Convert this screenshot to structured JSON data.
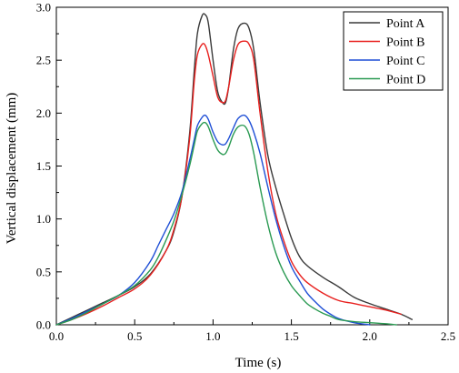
{
  "chart_data": {
    "type": "line",
    "title": "",
    "xlabel": "Time (s)",
    "ylabel": "Vertical displacement (mm)",
    "xlim": [
      0.0,
      2.5
    ],
    "ylim": [
      0.0,
      3.0
    ],
    "xticks": [
      0.0,
      0.5,
      1.0,
      1.5,
      2.0,
      2.5
    ],
    "xtick_labels": [
      "0.0",
      "0.5",
      "1.0",
      "1.5",
      "2.0",
      "2.5"
    ],
    "yticks": [
      0.0,
      0.5,
      1.0,
      1.5,
      2.0,
      2.5,
      3.0
    ],
    "ytick_labels": [
      "0.0",
      "0.5",
      "1.0",
      "1.5",
      "2.0",
      "2.5",
      "3.0"
    ],
    "grid": false,
    "legend_position": "top-right",
    "series": [
      {
        "name": "Point A",
        "color": "#3a3a3a",
        "x": [
          0.0,
          0.1,
          0.2,
          0.3,
          0.4,
          0.5,
          0.6,
          0.7,
          0.75,
          0.8,
          0.85,
          0.88,
          0.9,
          0.93,
          0.95,
          0.97,
          1.0,
          1.03,
          1.06,
          1.08,
          1.1,
          1.13,
          1.16,
          1.2,
          1.23,
          1.26,
          1.3,
          1.35,
          1.4,
          1.45,
          1.5,
          1.55,
          1.6,
          1.7,
          1.8,
          1.9,
          2.0,
          2.1,
          2.2,
          2.27
        ],
        "y": [
          0.0,
          0.07,
          0.14,
          0.21,
          0.28,
          0.36,
          0.48,
          0.7,
          0.88,
          1.2,
          1.8,
          2.4,
          2.75,
          2.92,
          2.93,
          2.85,
          2.5,
          2.2,
          2.1,
          2.1,
          2.25,
          2.6,
          2.8,
          2.85,
          2.8,
          2.6,
          2.1,
          1.6,
          1.3,
          1.05,
          0.82,
          0.65,
          0.56,
          0.45,
          0.36,
          0.26,
          0.2,
          0.15,
          0.1,
          0.05
        ]
      },
      {
        "name": "Point B",
        "color": "#e8201e",
        "x": [
          0.0,
          0.1,
          0.2,
          0.3,
          0.4,
          0.5,
          0.6,
          0.7,
          0.75,
          0.8,
          0.85,
          0.88,
          0.9,
          0.93,
          0.95,
          0.97,
          1.0,
          1.03,
          1.06,
          1.08,
          1.1,
          1.13,
          1.16,
          1.2,
          1.23,
          1.26,
          1.3,
          1.35,
          1.4,
          1.45,
          1.5,
          1.55,
          1.6,
          1.7,
          1.8,
          1.9,
          2.0,
          2.1,
          2.2
        ],
        "y": [
          0.0,
          0.05,
          0.11,
          0.18,
          0.26,
          0.34,
          0.47,
          0.7,
          0.9,
          1.2,
          1.75,
          2.3,
          2.55,
          2.65,
          2.64,
          2.55,
          2.35,
          2.15,
          2.1,
          2.12,
          2.25,
          2.5,
          2.65,
          2.68,
          2.65,
          2.5,
          2.0,
          1.45,
          1.05,
          0.8,
          0.6,
          0.48,
          0.4,
          0.3,
          0.23,
          0.2,
          0.17,
          0.14,
          0.1
        ]
      },
      {
        "name": "Point C",
        "color": "#1f4fd6",
        "x": [
          0.0,
          0.1,
          0.2,
          0.3,
          0.4,
          0.5,
          0.6,
          0.65,
          0.7,
          0.75,
          0.8,
          0.85,
          0.88,
          0.9,
          0.93,
          0.95,
          0.97,
          1.0,
          1.03,
          1.06,
          1.08,
          1.1,
          1.13,
          1.16,
          1.2,
          1.23,
          1.26,
          1.3,
          1.35,
          1.4,
          1.45,
          1.5,
          1.55,
          1.6,
          1.65,
          1.7,
          1.75,
          1.8,
          1.9,
          2.0
        ],
        "y": [
          0.0,
          0.06,
          0.13,
          0.2,
          0.28,
          0.4,
          0.6,
          0.75,
          0.9,
          1.05,
          1.25,
          1.55,
          1.75,
          1.88,
          1.96,
          1.98,
          1.94,
          1.82,
          1.73,
          1.7,
          1.71,
          1.76,
          1.86,
          1.95,
          1.98,
          1.93,
          1.82,
          1.62,
          1.3,
          1.0,
          0.75,
          0.55,
          0.42,
          0.3,
          0.22,
          0.15,
          0.1,
          0.06,
          0.02,
          0.0
        ]
      },
      {
        "name": "Point D",
        "color": "#2a9a52",
        "x": [
          0.0,
          0.1,
          0.2,
          0.3,
          0.4,
          0.5,
          0.6,
          0.65,
          0.7,
          0.75,
          0.8,
          0.85,
          0.88,
          0.9,
          0.93,
          0.95,
          0.97,
          1.0,
          1.03,
          1.06,
          1.08,
          1.1,
          1.13,
          1.16,
          1.2,
          1.23,
          1.26,
          1.3,
          1.35,
          1.4,
          1.45,
          1.5,
          1.55,
          1.6,
          1.65,
          1.7,
          1.75,
          1.8,
          1.9,
          2.0,
          2.1,
          2.17
        ],
        "y": [
          0.0,
          0.05,
          0.12,
          0.2,
          0.28,
          0.37,
          0.52,
          0.64,
          0.8,
          0.98,
          1.22,
          1.5,
          1.7,
          1.83,
          1.9,
          1.91,
          1.87,
          1.75,
          1.65,
          1.61,
          1.62,
          1.68,
          1.8,
          1.87,
          1.88,
          1.8,
          1.62,
          1.3,
          0.95,
          0.68,
          0.5,
          0.37,
          0.28,
          0.2,
          0.15,
          0.11,
          0.08,
          0.05,
          0.03,
          0.02,
          0.01,
          0.0
        ]
      }
    ]
  }
}
